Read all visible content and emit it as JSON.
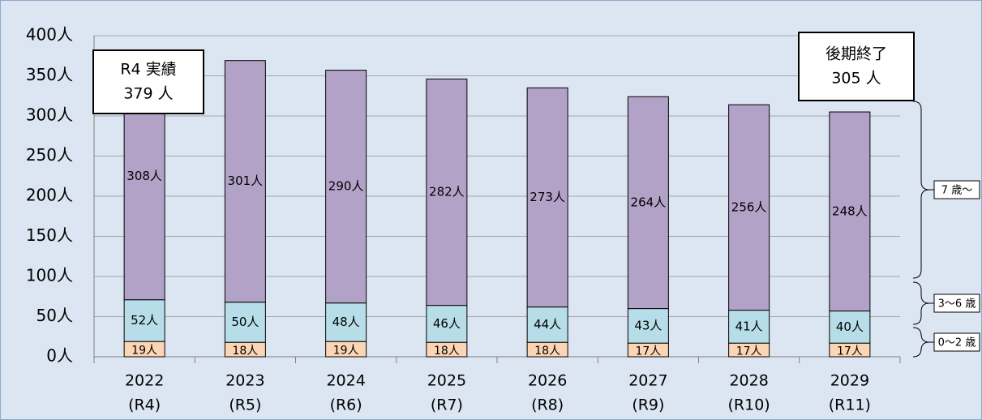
{
  "chart_data": {
    "type": "stacked_bar",
    "categories": [
      [
        "2022",
        "(R4)"
      ],
      [
        "2023",
        "(R5)"
      ],
      [
        "2024",
        "(R6)"
      ],
      [
        "2025",
        "(R7)"
      ],
      [
        "2026",
        "(R8)"
      ],
      [
        "2027",
        "(R9)"
      ],
      [
        "2028",
        "(R10)"
      ],
      [
        "2029",
        "(R11)"
      ]
    ],
    "series": [
      {
        "name": "0〜2 歳",
        "color": "#fcd5b4",
        "values": [
          19,
          18,
          19,
          18,
          18,
          17,
          17,
          17
        ],
        "value_labels": [
          "19人",
          "18人",
          "19人",
          "18人",
          "18人",
          "17人",
          "17人",
          "17人"
        ]
      },
      {
        "name": "3〜6 歳",
        "color": "#b7dee8",
        "values": [
          52,
          50,
          48,
          46,
          44,
          43,
          41,
          40
        ],
        "value_labels": [
          "52人",
          "50人",
          "48人",
          "46人",
          "44人",
          "43人",
          "41人",
          "40人"
        ]
      },
      {
        "name": "7 歳〜",
        "color": "#b3a2c7",
        "values": [
          308,
          301,
          290,
          282,
          273,
          264,
          256,
          248
        ],
        "value_labels": [
          "308人",
          "301人",
          "290人",
          "282人",
          "273人",
          "264人",
          "256人",
          "248人"
        ]
      }
    ],
    "ylim": [
      0,
      400
    ],
    "yticks": [
      {
        "value": 0,
        "label": "0人"
      },
      {
        "value": 50,
        "label": "50人"
      },
      {
        "value": 100,
        "label": "100人"
      },
      {
        "value": 150,
        "label": "150人"
      },
      {
        "value": 200,
        "label": "200人"
      },
      {
        "value": 250,
        "label": "250人"
      },
      {
        "value": 300,
        "label": "300人"
      },
      {
        "value": 350,
        "label": "350人"
      },
      {
        "value": 400,
        "label": "400人"
      }
    ],
    "grid": true,
    "annotations": [
      {
        "lines": [
          "R4 実績",
          "379 人"
        ]
      },
      {
        "lines": [
          "後期終了",
          "305 人"
        ]
      }
    ]
  }
}
